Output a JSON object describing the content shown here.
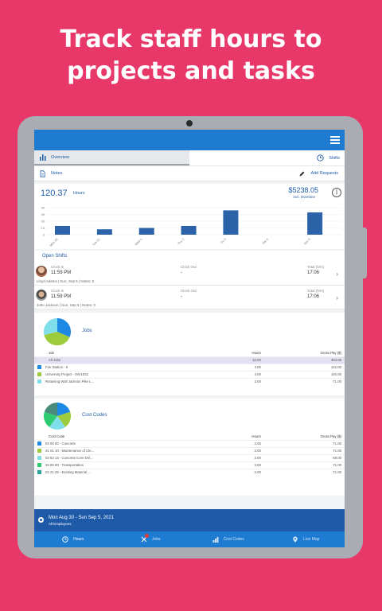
{
  "headline": {
    "line1": "Track staff hours to",
    "line2": "projects and tasks"
  },
  "colors": {
    "background": "#E8386A",
    "primary": "#1E7BD2",
    "dark_primary": "#1E5AA8",
    "bar": "#2C63A8"
  },
  "tabs": {
    "overview": "Overview",
    "shifts": "Shifts",
    "notes": "Notes",
    "add_requests": "Add Requests"
  },
  "summary": {
    "hours_value": "120.37",
    "hours_label": "Hours",
    "pay": "$5238.05",
    "pay_sub": "incl. Overtime",
    "info_icon": "i"
  },
  "chart_data": {
    "type": "bar",
    "categories": [
      "Mon 30",
      "Tue 31",
      "Wed 1",
      "Thu 2",
      "Fri 3",
      "Sat 4",
      "Sun 5"
    ],
    "values": [
      13,
      8,
      10,
      13,
      36,
      0,
      33
    ],
    "ylim": [
      0,
      40
    ],
    "yticks": [
      "40",
      "30",
      "20",
      "10",
      "0"
    ]
  },
  "open_shifts": {
    "title": "Open Shifts",
    "shifts": [
      {
        "clock_in_label": "Clock In",
        "clock_in": "11:59 PM",
        "clock_out_label": "Clock Out",
        "clock_out": "-",
        "total_label": "Total (h/m)",
        "total": "17:06",
        "info": "Lloyd Adams  |  Sun, Sep 5  |  Notes:  0"
      },
      {
        "clock_in_label": "Clock In",
        "clock_in": "11:59 PM",
        "clock_out_label": "Clock Out",
        "clock_out": "-",
        "total_label": "Total (h/m)",
        "total": "17:06",
        "info": "John Jackson  |  Sun, Sep 5  |  Notes:  3"
      }
    ]
  },
  "jobs": {
    "title": "Jobs",
    "headers": [
      "Job",
      "Hours",
      "Gross Pay ($)"
    ],
    "all_row": [
      "All Jobs",
      "10.00",
      "353.00"
    ],
    "rows": [
      {
        "color": "#1E88E5",
        "name": "Fire Station - 5",
        "hours": "4.00",
        "pay": "142.00"
      },
      {
        "color": "#9CCC3C",
        "name": "University Project - INV1021",
        "hours": "4.00",
        "pay": "140.00"
      },
      {
        "color": "#80DEEA",
        "name": "Retaining Wall Jackson Pike L...",
        "hours": "2.00",
        "pay": "71.00"
      }
    ]
  },
  "cost_codes": {
    "title": "Cost Codes",
    "headers": [
      "Cost Code",
      "Hours",
      "Gross Pay ($)"
    ],
    "rows": [
      {
        "color": "#1E88E5",
        "name": "03 00 00 - Concrete",
        "hours": "2.00",
        "pay": "71.00"
      },
      {
        "color": "#9CCC3C",
        "name": "31 01 10 - Maintenance of Cle...",
        "hours": "2.00",
        "pay": "71.00"
      },
      {
        "color": "#80DEEA",
        "name": "03 63 13 - Concrete Core Dril...",
        "hours": "2.00",
        "pay": "69.00"
      },
      {
        "color": "#2ECC71",
        "name": "34 00 00 - Transportation",
        "hours": "2.00",
        "pay": "71.00"
      },
      {
        "color": "#26A69A",
        "name": "02 21 25 - Existing Material ...",
        "hours": "2.00",
        "pay": "71.00"
      }
    ]
  },
  "footer": {
    "date_range": "Mon Aug 30 - Sun Sep 5, 2021",
    "employees": "All Employees"
  },
  "nav": {
    "hours": "Hours",
    "jobs": "Jobs",
    "cost_codes": "Cost Codes",
    "live_map": "Live Map"
  }
}
